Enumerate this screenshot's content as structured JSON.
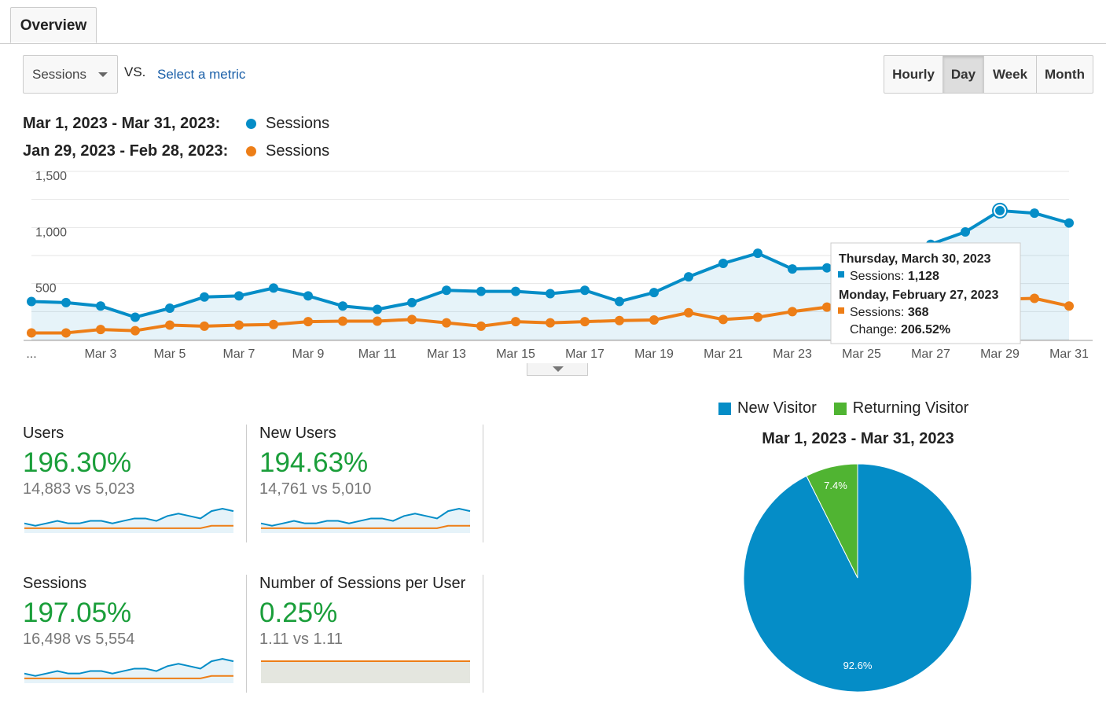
{
  "tab": {
    "label": "Overview"
  },
  "controls": {
    "metric_select": "Sessions",
    "vs": "VS.",
    "select_metric": "Select a metric",
    "time_buttons": [
      "Hourly",
      "Day",
      "Week",
      "Month"
    ],
    "active_time": "Day"
  },
  "legend": [
    {
      "range": "Mar 1, 2023 - Mar 31, 2023:",
      "series": "Sessions",
      "color": "#058dc7"
    },
    {
      "range": "Jan 29, 2023 - Feb 28, 2023:",
      "series": "Sessions",
      "color": "#ed7e17"
    }
  ],
  "chart_data": {
    "type": "line",
    "x": [
      "Mar 1",
      "Mar 2",
      "Mar 3",
      "Mar 4",
      "Mar 5",
      "Mar 6",
      "Mar 7",
      "Mar 8",
      "Mar 9",
      "Mar 10",
      "Mar 11",
      "Mar 12",
      "Mar 13",
      "Mar 14",
      "Mar 15",
      "Mar 16",
      "Mar 17",
      "Mar 18",
      "Mar 19",
      "Mar 20",
      "Mar 21",
      "Mar 22",
      "Mar 23",
      "Mar 24",
      "Mar 25",
      "Mar 26",
      "Mar 27",
      "Mar 28",
      "Mar 29",
      "Mar 30",
      "Mar 31"
    ],
    "xtick_labels": [
      "...",
      "Mar 3",
      "Mar 5",
      "Mar 7",
      "Mar 9",
      "Mar 11",
      "Mar 13",
      "Mar 15",
      "Mar 17",
      "Mar 19",
      "Mar 21",
      "Mar 23",
      "Mar 25",
      "Mar 27",
      "Mar 29",
      "Mar 31"
    ],
    "yticks": [
      "1,500",
      "1,000",
      "500"
    ],
    "ylim": [
      0,
      1500
    ],
    "grid": true,
    "series": [
      {
        "name": "Sessions",
        "color": "#058dc7",
        "area": true,
        "values": [
          340,
          330,
          300,
          200,
          280,
          380,
          390,
          460,
          390,
          300,
          270,
          330,
          440,
          430,
          430,
          410,
          440,
          340,
          420,
          560,
          680,
          770,
          630,
          640,
          620,
          640,
          850,
          960,
          1150,
          1128,
          1040
        ]
      },
      {
        "name": "Sessions",
        "color": "#ed7e17",
        "area": false,
        "values": [
          60,
          60,
          90,
          80,
          130,
          120,
          130,
          135,
          160,
          165,
          165,
          180,
          150,
          120,
          160,
          150,
          160,
          170,
          175,
          240,
          180,
          200,
          250,
          290,
          300,
          310,
          300,
          340,
          360,
          368,
          300
        ]
      }
    ]
  },
  "tooltip": {
    "date1": "Thursday, March 30, 2023",
    "label1": "Sessions: ",
    "value1": "1,128",
    "date2": "Monday, February 27, 2023",
    "label2": "Sessions: ",
    "value2": "368",
    "change_label": "Change: ",
    "change_value": "206.52%"
  },
  "metrics": [
    {
      "label": "Users",
      "pct": "196.30%",
      "cmp": "14,883 vs 5,023",
      "spark_a": [
        3,
        2,
        3,
        4,
        3,
        3,
        4,
        4,
        3,
        4,
        5,
        5,
        4,
        6,
        7,
        6,
        5,
        8,
        9,
        8
      ],
      "spark_b": [
        1,
        1,
        1,
        1,
        1,
        1,
        1,
        1,
        1,
        1,
        1,
        1,
        1,
        1,
        1,
        1,
        1,
        2,
        2,
        2
      ]
    },
    {
      "label": "New Users",
      "pct": "194.63%",
      "cmp": "14,761 vs 5,010",
      "spark_a": [
        3,
        2,
        3,
        4,
        3,
        3,
        4,
        4,
        3,
        4,
        5,
        5,
        4,
        6,
        7,
        6,
        5,
        8,
        9,
        8
      ],
      "spark_b": [
        1,
        1,
        1,
        1,
        1,
        1,
        1,
        1,
        1,
        1,
        1,
        1,
        1,
        1,
        1,
        1,
        1,
        2,
        2,
        2
      ]
    },
    {
      "label": "Sessions",
      "pct": "197.05%",
      "cmp": "16,498 vs 5,554",
      "spark_a": [
        3,
        2,
        3,
        4,
        3,
        3,
        4,
        4,
        3,
        4,
        5,
        5,
        4,
        6,
        7,
        6,
        5,
        8,
        9,
        8
      ],
      "spark_b": [
        1,
        1,
        1,
        1,
        1,
        1,
        1,
        1,
        1,
        1,
        1,
        1,
        1,
        1,
        1,
        1,
        1,
        2,
        2,
        2
      ]
    },
    {
      "label": "Number of Sessions per User",
      "pct": "0.25%",
      "cmp": "1.11 vs 1.11",
      "spark_a": [
        5,
        5,
        5,
        5,
        5,
        5,
        5,
        5,
        5,
        5,
        5,
        5,
        5,
        5,
        5,
        5,
        5,
        5,
        5,
        5
      ],
      "spark_b": [
        5,
        5,
        5,
        5,
        5,
        5,
        5,
        5,
        5,
        5,
        5,
        5,
        5,
        5,
        5,
        5,
        5,
        5,
        5,
        5
      ]
    }
  ],
  "pie": {
    "legend": [
      {
        "label": "New Visitor",
        "color": "#058dc7"
      },
      {
        "label": "Returning Visitor",
        "color": "#50b432"
      }
    ],
    "title": "Mar 1, 2023 - Mar 31, 2023",
    "slices": [
      {
        "label": "92.6%",
        "value": 92.6,
        "color": "#058dc7"
      },
      {
        "label": "7.4%",
        "value": 7.4,
        "color": "#50b432"
      }
    ]
  }
}
